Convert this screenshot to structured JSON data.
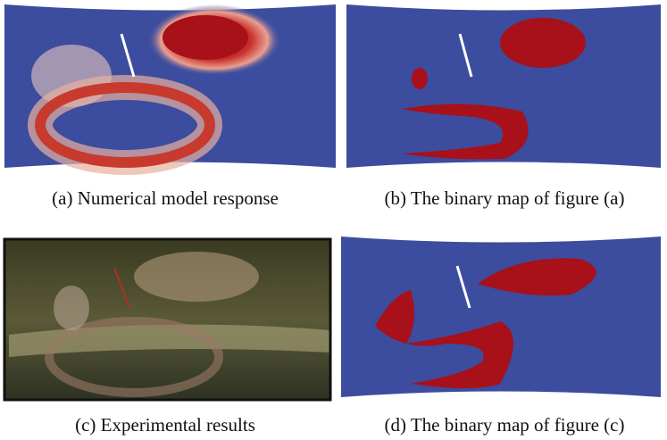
{
  "panels": [
    {
      "caption": "(a)  Numerical model response"
    },
    {
      "caption": "(b)  The binary map of figure (a)"
    },
    {
      "caption": "(c)  Experimental results"
    },
    {
      "caption": "(d)  The binary map of figure (c)"
    }
  ]
}
